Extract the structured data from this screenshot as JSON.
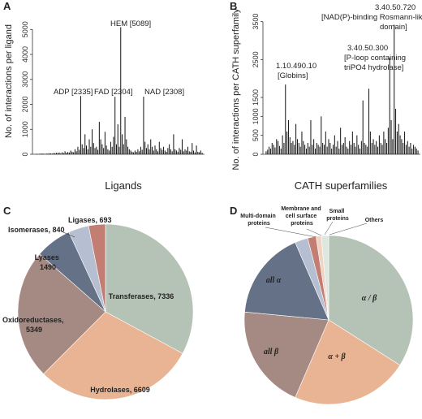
{
  "chart_data": [
    {
      "panel": "A",
      "type": "bar",
      "ylabel": "No. of interactions per ligand",
      "xlabel": "Ligands",
      "ylim": [
        0,
        5400
      ],
      "yticks": [
        "0",
        "1000",
        "2000",
        "3000",
        "4000",
        "5000"
      ],
      "ytick_values": [
        0,
        1000,
        2000,
        3000,
        4000,
        5000
      ],
      "annotations": [
        {
          "label": "ADP [2335]",
          "value": 2335
        },
        {
          "label": "FAD [2304]",
          "value": 2304
        },
        {
          "label": "HEM [5089]",
          "value": 5089
        },
        {
          "label": "NAD [2308]",
          "value": 2308
        }
      ],
      "values": [
        20,
        15,
        18,
        25,
        30,
        22,
        18,
        25,
        30,
        40,
        35,
        28,
        50,
        45,
        60,
        55,
        70,
        40,
        80,
        50,
        120,
        60,
        90,
        70,
        150,
        100,
        80,
        200,
        120,
        300,
        180,
        2335,
        400,
        250,
        800,
        350,
        200,
        600,
        300,
        1000,
        450,
        250,
        300,
        180,
        1300,
        600,
        400,
        250,
        900,
        350,
        200,
        150,
        500,
        300,
        700,
        2304,
        400,
        1200,
        300,
        5089,
        800,
        400,
        1500,
        600,
        300,
        200,
        150,
        100,
        80,
        150,
        100,
        200,
        120,
        300,
        180,
        2308,
        500,
        250,
        400,
        200,
        600,
        300,
        150,
        350,
        200,
        120,
        500,
        250,
        180,
        300,
        150,
        100,
        250,
        400,
        200,
        120,
        800,
        200,
        150,
        100,
        250,
        180,
        600,
        120,
        200,
        150,
        300,
        120,
        100,
        450,
        150,
        80,
        350,
        100,
        80,
        150,
        60
      ]
    },
    {
      "panel": "B",
      "type": "bar",
      "ylabel": "No. of interactions per CATH superfamily",
      "xlabel": "CATH superfamilies",
      "ylim": [
        0,
        3600
      ],
      "yticks": [
        "0",
        "500",
        "1000",
        "1500",
        "2500",
        "3500"
      ],
      "ytick_values": [
        0,
        500,
        1000,
        1500,
        2500,
        3500
      ],
      "annotations": [
        {
          "label": "1.10.490.10",
          "label2": "[Globins]",
          "value": 1840
        },
        {
          "label": "3.40.50.300",
          "label2": "[P-loop containing",
          "label3": "triPO4 hydrolase]",
          "value": 2550
        },
        {
          "label": "3.40.50.720",
          "label2": "[NAD(P)-binding Rosmann-like",
          "label3": "domain]",
          "value": 3420
        }
      ],
      "values": [
        80,
        120,
        200,
        150,
        300,
        250,
        180,
        400,
        350,
        220,
        150,
        500,
        300,
        1840,
        600,
        900,
        450,
        300,
        350,
        250,
        800,
        400,
        300,
        200,
        600,
        350,
        250,
        150,
        300,
        200,
        900,
        250,
        400,
        150,
        300,
        250,
        200,
        1000,
        300,
        250,
        600,
        200,
        400,
        300,
        150,
        250,
        500,
        200,
        350,
        150,
        700,
        250,
        300,
        450,
        200,
        150,
        350,
        250,
        600,
        300,
        200,
        500,
        250,
        150,
        350,
        1420,
        300,
        250,
        200,
        1730,
        600,
        300,
        400,
        250,
        350,
        200,
        500,
        300,
        250,
        600,
        400,
        300,
        700,
        2550,
        900,
        400,
        3420,
        1200,
        600,
        800,
        500,
        400,
        300,
        600,
        250,
        350,
        200,
        300,
        150,
        250,
        200,
        150,
        100
      ]
    },
    {
      "panel": "C",
      "type": "pie",
      "slices": [
        {
          "label": "Transferases, 7336",
          "value": 7336,
          "color": "#b4c3b5"
        },
        {
          "label": "Hydrolases, 6609",
          "value": 6609,
          "color": "#e9b493"
        },
        {
          "label": "Oxidoreductases, 5349",
          "value": 5349,
          "color": "#a58a84"
        },
        {
          "label": "Lyases, 1490",
          "value": 1490,
          "color": "#657187"
        },
        {
          "label": "Isomerases, 840",
          "value": 840,
          "color": "#b5bfd1"
        },
        {
          "label": "Ligases, 693",
          "value": 693,
          "color": "#c37e74"
        }
      ]
    },
    {
      "panel": "D",
      "type": "pie",
      "slices": [
        {
          "label": "α / β",
          "value": 34.0,
          "color": "#b4c3b5"
        },
        {
          "label": "α + β",
          "value": 22.5,
          "color": "#e9b493"
        },
        {
          "label": "all β",
          "value": 20.0,
          "color": "#a58a84"
        },
        {
          "label": "all α",
          "value": 17.0,
          "color": "#657187"
        },
        {
          "label": "Multi-domain proteins",
          "value": 2.5,
          "color": "#b5bfd1"
        },
        {
          "label": "Membrane and cell surface proteins",
          "value": 1.6,
          "color": "#c37e74"
        },
        {
          "label": "Small proteins",
          "value": 1.0,
          "color": "#f0d3c3"
        },
        {
          "label": "Others",
          "value": 1.4,
          "color": "#dfe6e0"
        }
      ]
    }
  ]
}
